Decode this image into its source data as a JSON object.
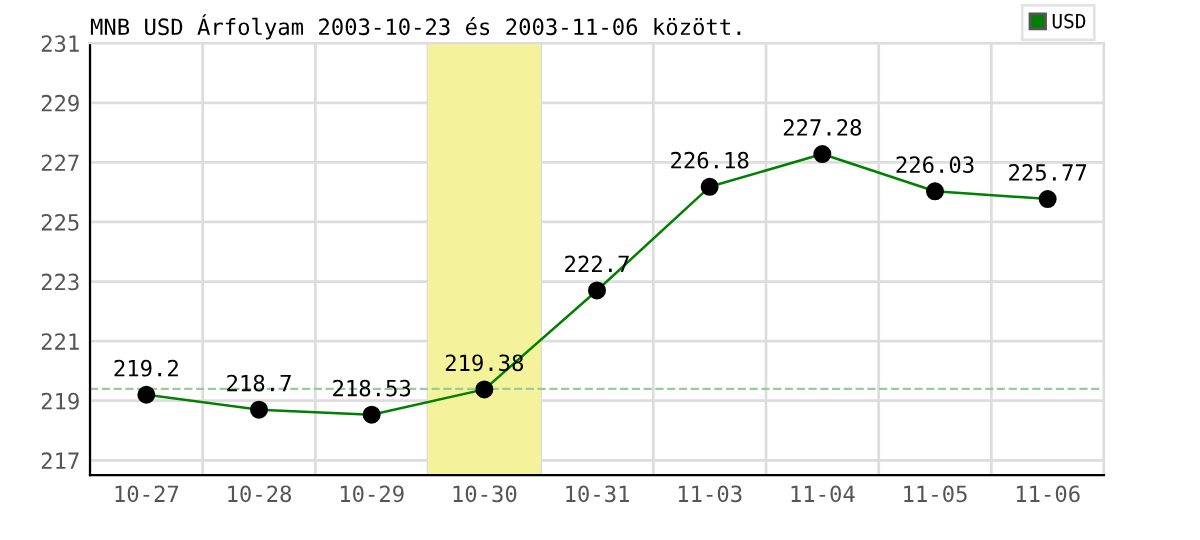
{
  "chart_data": {
    "type": "line",
    "title": "MNB USD Árfolyam 2003-10-23 és 2003-11-06 között.",
    "categories": [
      "10-27",
      "10-28",
      "10-29",
      "10-30",
      "10-31",
      "11-03",
      "11-04",
      "11-05",
      "11-06"
    ],
    "series": [
      {
        "name": "USD",
        "color": "#008000",
        "values": [
          219.2,
          218.7,
          218.53,
          219.38,
          222.7,
          226.18,
          227.28,
          226.03,
          225.77
        ]
      }
    ],
    "ylim": [
      216.5,
      231
    ],
    "yticks": [
      217,
      219,
      221,
      223,
      225,
      227,
      229,
      231
    ],
    "grid": true,
    "legend": "top right",
    "marker": "circle",
    "line_style": "solid",
    "data_labels": true,
    "ref_lines": [
      {
        "axis": "y",
        "value": 219.4,
        "color": "#99cc99",
        "line_style": "dashed"
      }
    ],
    "bands": [
      {
        "axis": "x",
        "from": "10-30",
        "to": "10-30",
        "color": "#f4f29a"
      }
    ]
  }
}
